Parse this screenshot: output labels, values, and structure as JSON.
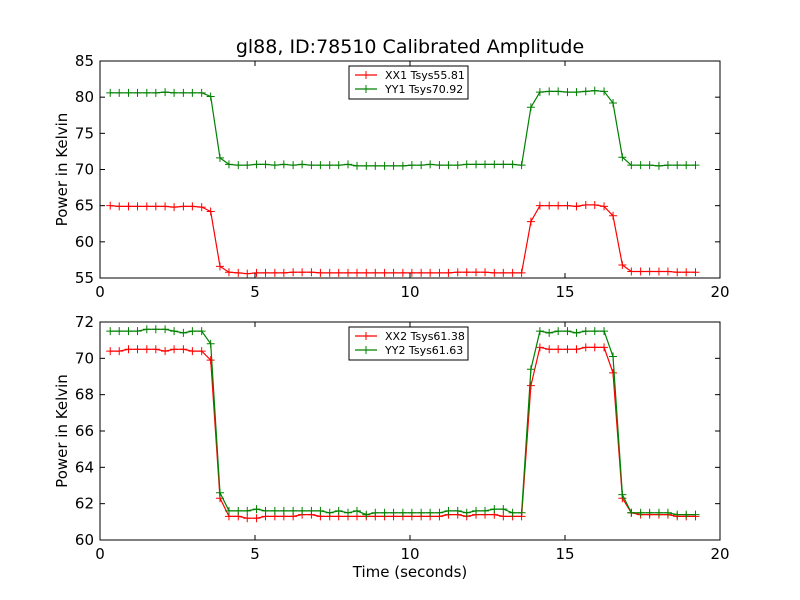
{
  "title": "gl88, ID:78510 Calibrated Amplitude",
  "chart_data": [
    {
      "type": "line",
      "ylabel": "Power in Kelvin",
      "xlabel": "",
      "xlim": [
        0,
        20
      ],
      "ylim": [
        55,
        85
      ],
      "xticks": [
        "0",
        "5",
        "10",
        "15",
        "20"
      ],
      "yticks": [
        "55",
        "60",
        "65",
        "70",
        "75",
        "80",
        "85"
      ],
      "grid": false,
      "legend": "top-center",
      "x": [
        0.33,
        0.62,
        0.92,
        1.21,
        1.51,
        1.8,
        2.1,
        2.39,
        2.69,
        2.98,
        3.28,
        3.57,
        3.87,
        4.16,
        4.46,
        4.75,
        5.05,
        5.34,
        5.64,
        5.93,
        6.23,
        6.52,
        6.82,
        7.11,
        7.41,
        7.7,
        8.0,
        8.29,
        8.59,
        8.88,
        9.18,
        9.47,
        9.77,
        10.06,
        10.36,
        10.65,
        10.95,
        11.24,
        11.54,
        11.83,
        12.13,
        12.42,
        12.72,
        13.01,
        13.31,
        13.6,
        13.9,
        14.19,
        14.49,
        14.78,
        15.08,
        15.37,
        15.67,
        15.96,
        16.26,
        16.55,
        16.85,
        17.14,
        17.44,
        17.73,
        18.03,
        18.32,
        18.62,
        18.91,
        19.21
      ],
      "series": [
        {
          "name": "XX1 Tsys55.81",
          "color": "#ff0000",
          "values": [
            65.0,
            64.9,
            64.9,
            64.9,
            64.9,
            64.9,
            64.9,
            64.8,
            64.9,
            64.9,
            64.8,
            64.2,
            56.6,
            55.8,
            55.7,
            55.6,
            55.7,
            55.7,
            55.7,
            55.7,
            55.8,
            55.8,
            55.8,
            55.7,
            55.7,
            55.7,
            55.7,
            55.7,
            55.7,
            55.7,
            55.7,
            55.7,
            55.7,
            55.7,
            55.7,
            55.7,
            55.7,
            55.7,
            55.8,
            55.8,
            55.8,
            55.8,
            55.7,
            55.7,
            55.7,
            55.7,
            62.8,
            65.0,
            65.0,
            65.0,
            65.0,
            64.9,
            65.1,
            65.1,
            64.9,
            63.6,
            56.8,
            55.9,
            55.9,
            55.9,
            55.9,
            55.9,
            55.8,
            55.8,
            55.8
          ]
        },
        {
          "name": "YY1 Tsys70.92",
          "color": "#008000",
          "values": [
            80.6,
            80.6,
            80.6,
            80.6,
            80.6,
            80.6,
            80.7,
            80.6,
            80.6,
            80.6,
            80.6,
            80.1,
            71.6,
            70.7,
            70.6,
            70.6,
            70.7,
            70.7,
            70.6,
            70.7,
            70.6,
            70.7,
            70.6,
            70.6,
            70.6,
            70.6,
            70.7,
            70.5,
            70.5,
            70.5,
            70.5,
            70.5,
            70.5,
            70.6,
            70.6,
            70.7,
            70.6,
            70.6,
            70.6,
            70.7,
            70.7,
            70.7,
            70.7,
            70.7,
            70.7,
            70.6,
            78.6,
            80.7,
            80.8,
            80.8,
            80.7,
            80.7,
            80.8,
            80.9,
            80.8,
            79.2,
            71.7,
            70.6,
            70.6,
            70.6,
            70.5,
            70.6,
            70.6,
            70.6,
            70.6
          ]
        }
      ]
    },
    {
      "type": "line",
      "ylabel": "Power in Kelvin",
      "xlabel": "Time (seconds)",
      "xlim": [
        0,
        20
      ],
      "ylim": [
        60,
        72
      ],
      "xticks": [
        "0",
        "5",
        "10",
        "15",
        "20"
      ],
      "yticks": [
        "60",
        "62",
        "64",
        "66",
        "68",
        "70",
        "72"
      ],
      "grid": false,
      "legend": "top-center",
      "x": [
        0.33,
        0.62,
        0.92,
        1.21,
        1.51,
        1.8,
        2.1,
        2.39,
        2.69,
        2.98,
        3.28,
        3.57,
        3.87,
        4.16,
        4.46,
        4.75,
        5.05,
        5.34,
        5.64,
        5.93,
        6.23,
        6.52,
        6.82,
        7.11,
        7.41,
        7.7,
        8.0,
        8.29,
        8.59,
        8.88,
        9.18,
        9.47,
        9.77,
        10.06,
        10.36,
        10.65,
        10.95,
        11.24,
        11.54,
        11.83,
        12.13,
        12.42,
        12.72,
        13.01,
        13.31,
        13.6,
        13.9,
        14.19,
        14.49,
        14.78,
        15.08,
        15.37,
        15.67,
        15.96,
        16.26,
        16.55,
        16.85,
        17.14,
        17.44,
        17.73,
        18.03,
        18.32,
        18.62,
        18.91,
        19.21
      ],
      "series": [
        {
          "name": "XX2 Tsys61.38",
          "color": "#ff0000",
          "values": [
            70.4,
            70.4,
            70.5,
            70.5,
            70.5,
            70.5,
            70.4,
            70.5,
            70.5,
            70.4,
            70.4,
            69.9,
            62.3,
            61.3,
            61.3,
            61.2,
            61.2,
            61.3,
            61.3,
            61.3,
            61.3,
            61.4,
            61.4,
            61.3,
            61.3,
            61.3,
            61.3,
            61.3,
            61.3,
            61.3,
            61.3,
            61.3,
            61.3,
            61.3,
            61.3,
            61.3,
            61.3,
            61.4,
            61.4,
            61.3,
            61.4,
            61.4,
            61.4,
            61.3,
            61.3,
            61.3,
            68.5,
            70.6,
            70.5,
            70.5,
            70.5,
            70.5,
            70.6,
            70.6,
            70.6,
            69.2,
            62.3,
            61.5,
            61.4,
            61.4,
            61.4,
            61.4,
            61.3,
            61.3,
            61.3
          ]
        },
        {
          "name": "YY2 Tsys61.63",
          "color": "#008000",
          "values": [
            71.5,
            71.5,
            71.5,
            71.5,
            71.6,
            71.6,
            71.6,
            71.5,
            71.4,
            71.5,
            71.5,
            70.8,
            62.6,
            61.6,
            61.6,
            61.6,
            61.7,
            61.6,
            61.6,
            61.6,
            61.6,
            61.6,
            61.6,
            61.6,
            61.5,
            61.6,
            61.5,
            61.6,
            61.4,
            61.5,
            61.5,
            61.5,
            61.5,
            61.5,
            61.5,
            61.5,
            61.5,
            61.6,
            61.6,
            61.5,
            61.6,
            61.6,
            61.7,
            61.7,
            61.5,
            61.5,
            69.4,
            71.5,
            71.4,
            71.5,
            71.5,
            71.4,
            71.5,
            71.5,
            71.5,
            70.1,
            62.5,
            61.5,
            61.5,
            61.5,
            61.5,
            61.5,
            61.4,
            61.4,
            61.4
          ]
        }
      ]
    }
  ]
}
